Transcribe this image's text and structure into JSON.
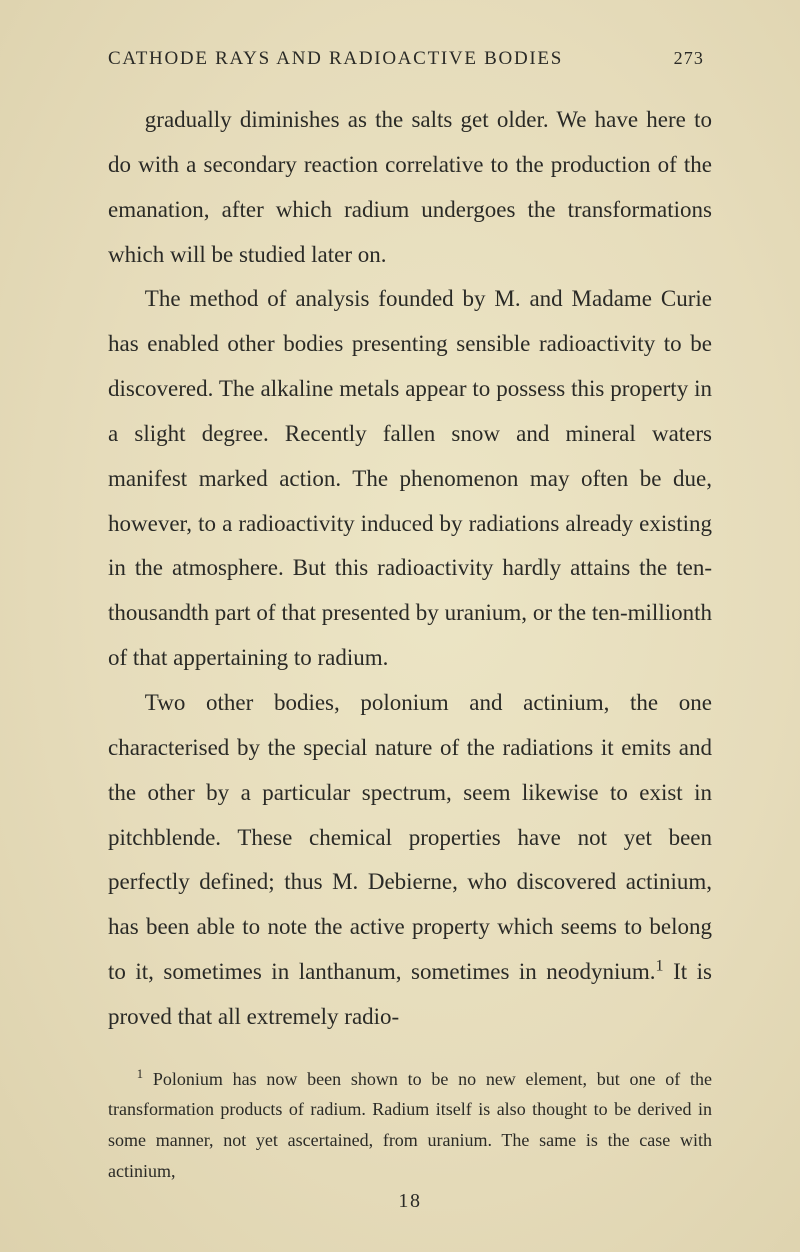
{
  "header": {
    "title": "CATHODE RAYS AND RADIOACTIVE BODIES",
    "page_number": "273"
  },
  "paragraphs": {
    "p1": "gradually diminishes as the salts get older. We have here to do with a secondary reaction correlative to the production of the emanation, after which radium undergoes the transformations which will be studied later on.",
    "p2": "The method of analysis founded by M. and Madame Curie has enabled other bodies presenting sensible radioactivity to be discovered. The alkaline metals appear to possess this property in a slight degree. Recently fallen snow and mineral waters manifest marked action. The phenomenon may often be due, however, to a radioactivity induced by radia­tions already existing in the atmosphere. But this radioactivity hardly attains the ten-thousandth part of that presented by uranium, or the ten-millionth of that appertaining to radium.",
    "p3_a": "Two other bodies, polonium and actinium, the one characterised by the special nature of the radiations it emits and the other by a particular spectrum, seem likewise to exist in pitchblende. These chemical properties have not yet been perfectly defined; thus M. Debierne, who discovered actinium, has been able to note the active property which seems to belong to it, sometimes in lanthanum, sometimes in neodynium.",
    "p3_b": " It is proved that all extremely radio-"
  },
  "footnote": {
    "marker": "1",
    "text": " Polonium has now been shown to be no new element, but one of the transformation products of radium. Radium itself is also thought to be derived in some manner, not yet ascer­tained, from uranium. The same is the case with actinium,"
  },
  "signature": "18"
}
